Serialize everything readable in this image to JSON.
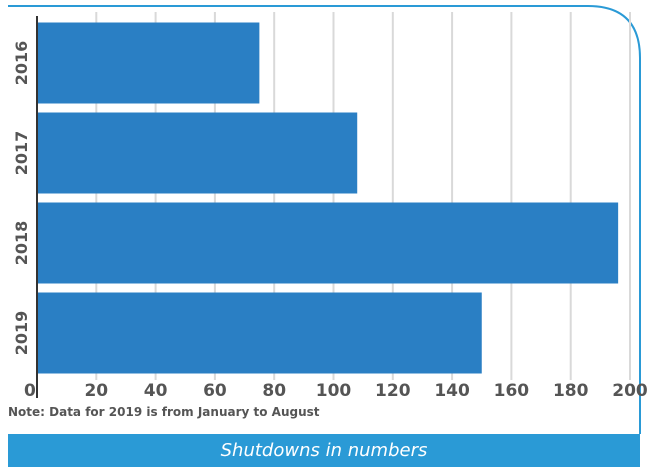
{
  "chart_data": {
    "type": "bar",
    "orientation": "horizontal",
    "categories": [
      "2016",
      "2017",
      "2018",
      "2019"
    ],
    "values": [
      75,
      108,
      196,
      150
    ],
    "x_ticks": [
      "0",
      "20",
      "40",
      "60",
      "80",
      "100",
      "120",
      "140",
      "160",
      "180",
      "200"
    ],
    "xlim": [
      0,
      200
    ],
    "title": "",
    "xlabel": "",
    "ylabel": "",
    "grid": "vertical",
    "bar_color": "#2a7fc4",
    "note": "Note: Data for 2019 is from January to August",
    "caption": "Shutdowns in numbers"
  }
}
